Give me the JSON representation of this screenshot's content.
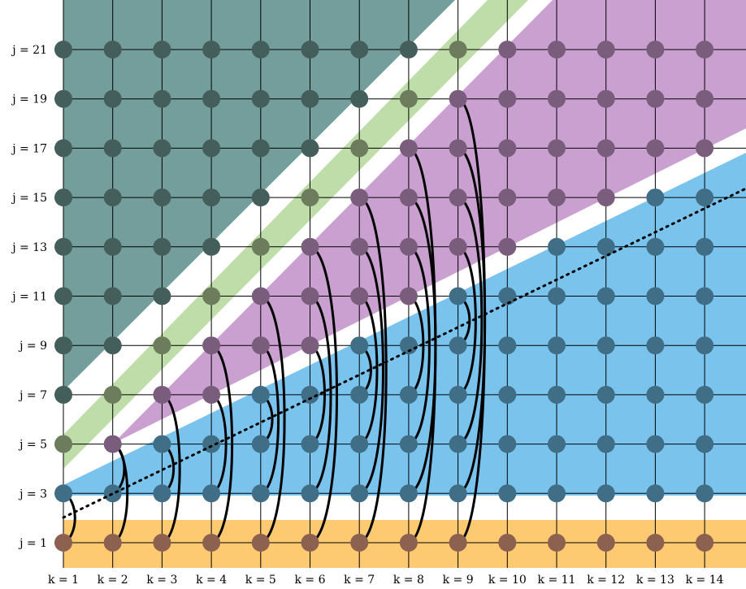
{
  "row_labels": [
    "j = 1",
    "j = 3",
    "j = 5",
    "j = 7",
    "j = 9",
    "j = 11",
    "j = 13",
    "j = 15",
    "j = 17",
    "j = 19",
    "j = 21"
  ],
  "col_labels": [
    "k = 1",
    "k = 2",
    "k = 3",
    "k = 4",
    "k = 5",
    "k = 6",
    "k = 7",
    "k = 8",
    "k = 9",
    "k = 10",
    "k = 11",
    "k = 12",
    "k = 13",
    "k = 14"
  ],
  "colors": {
    "grid_line": "#000000",
    "region_orange": "#fdca72",
    "region_blue": "#79c3ec",
    "region_purple": "#c9a0d0",
    "region_green": "#bfdda8",
    "region_teal": "#739e9b",
    "dot_orange": "#8c614f",
    "dot_blue": "#3f6e86",
    "dot_purple": "#7a5d7c",
    "dot_green": "#6c7c5d",
    "dot_teal": "#445e5b"
  },
  "dot_region_by_column": [
    {
      "k": 1,
      "rows": [
        "orange",
        "blue",
        "green",
        "teal",
        "teal",
        "teal",
        "teal",
        "teal",
        "teal",
        "teal",
        "teal"
      ]
    },
    {
      "k": 2,
      "rows": [
        "orange",
        "blue",
        "purple",
        "green",
        "teal",
        "teal",
        "teal",
        "teal",
        "teal",
        "teal",
        "teal"
      ]
    },
    {
      "k": 3,
      "rows": [
        "orange",
        "blue",
        "blue",
        "purple",
        "green",
        "teal",
        "teal",
        "teal",
        "teal",
        "teal",
        "teal"
      ]
    },
    {
      "k": 4,
      "rows": [
        "orange",
        "blue",
        "blue",
        "purple",
        "purple",
        "green",
        "teal",
        "teal",
        "teal",
        "teal",
        "teal"
      ]
    },
    {
      "k": 5,
      "rows": [
        "orange",
        "blue",
        "blue",
        "blue",
        "purple",
        "purple",
        "green",
        "teal",
        "teal",
        "teal",
        "teal"
      ]
    },
    {
      "k": 6,
      "rows": [
        "orange",
        "blue",
        "blue",
        "blue",
        "purple",
        "purple",
        "purple",
        "green",
        "teal",
        "teal",
        "teal"
      ]
    },
    {
      "k": 7,
      "rows": [
        "orange",
        "blue",
        "blue",
        "blue",
        "blue",
        "purple",
        "purple",
        "purple",
        "green",
        "teal",
        "teal"
      ]
    },
    {
      "k": 8,
      "rows": [
        "orange",
        "blue",
        "blue",
        "blue",
        "blue",
        "purple",
        "purple",
        "purple",
        "purple",
        "green",
        "teal"
      ]
    },
    {
      "k": 9,
      "rows": [
        "orange",
        "blue",
        "blue",
        "blue",
        "blue",
        "blue",
        "purple",
        "purple",
        "purple",
        "purple",
        "green"
      ]
    },
    {
      "k": 10,
      "rows": [
        "orange",
        "blue",
        "blue",
        "blue",
        "blue",
        "blue",
        "purple",
        "purple",
        "purple",
        "purple",
        "purple"
      ]
    },
    {
      "k": 11,
      "rows": [
        "orange",
        "blue",
        "blue",
        "blue",
        "blue",
        "blue",
        "blue",
        "purple",
        "purple",
        "purple",
        "purple"
      ]
    },
    {
      "k": 12,
      "rows": [
        "orange",
        "blue",
        "blue",
        "blue",
        "blue",
        "blue",
        "blue",
        "purple",
        "purple",
        "purple",
        "purple"
      ]
    },
    {
      "k": 13,
      "rows": [
        "orange",
        "blue",
        "blue",
        "blue",
        "blue",
        "blue",
        "blue",
        "blue",
        "purple",
        "purple",
        "purple"
      ]
    },
    {
      "k": 14,
      "rows": [
        "orange",
        "blue",
        "blue",
        "blue",
        "blue",
        "blue",
        "blue",
        "blue",
        "purple",
        "purple",
        "purple"
      ]
    }
  ]
}
